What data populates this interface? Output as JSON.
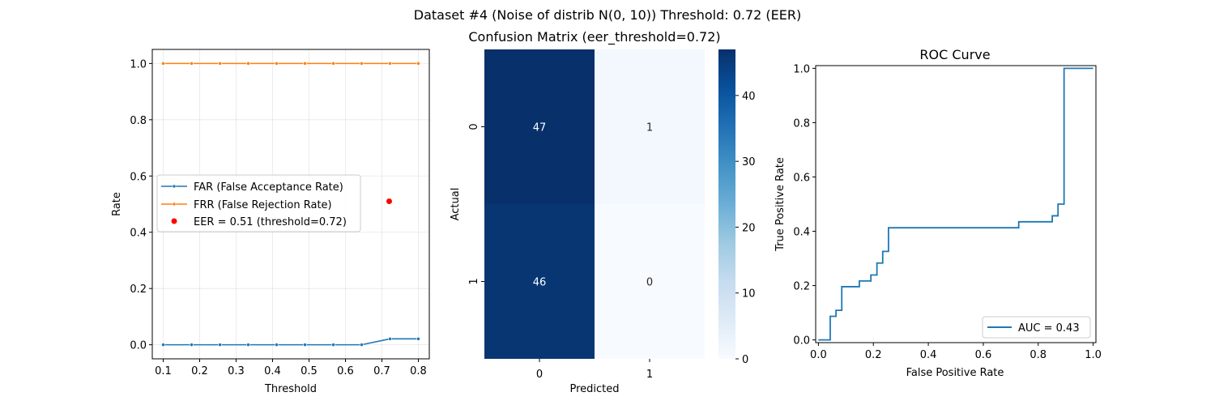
{
  "figure": {
    "suptitle": "Dataset #4 (Noise of distrib N(0, 10))     Threshold: 0.72 (EER)"
  },
  "chart_data": [
    {
      "type": "line",
      "title": "",
      "xlabel": "Threshold",
      "ylabel": "Rate",
      "xlim": [
        0.07,
        0.83
      ],
      "ylim": [
        -0.05,
        1.05
      ],
      "xticks": [
        "0.1",
        "0.2",
        "0.3",
        "0.4",
        "0.5",
        "0.6",
        "0.7",
        "0.8"
      ],
      "yticks": [
        "0.0",
        "0.2",
        "0.4",
        "0.6",
        "0.8",
        "1.0"
      ],
      "grid": true,
      "legend": "center-left",
      "series": [
        {
          "name": "FAR (False Acceptance Rate)",
          "color": "#1f77b4",
          "marker": "dot",
          "x": [
            0.1,
            0.1778,
            0.2556,
            0.3333,
            0.4111,
            0.4889,
            0.5667,
            0.6444,
            0.7222,
            0.8
          ],
          "y": [
            0.0,
            0.0,
            0.0,
            0.0,
            0.0,
            0.0,
            0.0,
            0.0,
            0.021,
            0.021
          ]
        },
        {
          "name": "FRR (False Rejection Rate)",
          "color": "#ff7f0e",
          "marker": "dot",
          "x": [
            0.1,
            0.1778,
            0.2556,
            0.3333,
            0.4111,
            0.4889,
            0.5667,
            0.6444,
            0.7222,
            0.8
          ],
          "y": [
            1.0,
            1.0,
            1.0,
            1.0,
            1.0,
            1.0,
            1.0,
            1.0,
            1.0,
            1.0
          ]
        }
      ],
      "points": [
        {
          "name": "EER = 0.51 (threshold=0.72)",
          "color": "#ff0000",
          "x": 0.72,
          "y": 0.51
        }
      ]
    },
    {
      "type": "heatmap",
      "title": "Confusion Matrix (eer_threshold=0.72)",
      "xlabel": "Predicted",
      "ylabel": "Actual",
      "x_categories": [
        "0",
        "1"
      ],
      "y_categories": [
        "0",
        "1"
      ],
      "values": [
        [
          47,
          1
        ],
        [
          46,
          0
        ]
      ],
      "colormap": "Blues",
      "vmin": 0,
      "vmax": 47,
      "colorbar_ticks": [
        "0",
        "10",
        "20",
        "30",
        "40"
      ]
    },
    {
      "type": "line",
      "title": "ROC Curve",
      "xlabel": "False Positive Rate",
      "ylabel": "True Positive Rate",
      "xlim": [
        -0.01,
        1.01
      ],
      "ylim": [
        -0.01,
        1.01
      ],
      "xticks": [
        "0.0",
        "0.2",
        "0.4",
        "0.6",
        "0.8",
        "1.0"
      ],
      "yticks": [
        "0.0",
        "0.2",
        "0.4",
        "0.6",
        "0.8",
        "1.0"
      ],
      "grid": false,
      "legend": "lower-right",
      "series": [
        {
          "name": "AUC = 0.43",
          "color": "#1f77b4",
          "step": true,
          "x": [
            0.0,
            0.043,
            0.043,
            0.064,
            0.064,
            0.085,
            0.085,
            0.149,
            0.149,
            0.191,
            0.191,
            0.213,
            0.213,
            0.234,
            0.234,
            0.255,
            0.255,
            0.729,
            0.729,
            0.851,
            0.851,
            0.872,
            0.872,
            0.894,
            0.894,
            1.0
          ],
          "y": [
            0.0,
            0.0,
            0.087,
            0.087,
            0.109,
            0.109,
            0.196,
            0.196,
            0.217,
            0.217,
            0.239,
            0.239,
            0.283,
            0.283,
            0.326,
            0.326,
            0.413,
            0.413,
            0.435,
            0.435,
            0.457,
            0.457,
            0.5,
            0.5,
            1.0,
            1.0
          ]
        }
      ]
    }
  ]
}
